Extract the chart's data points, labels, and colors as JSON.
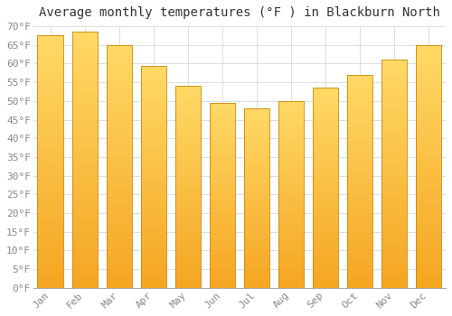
{
  "title": "Average monthly temperatures (°F ) in Blackburn North",
  "months": [
    "Jan",
    "Feb",
    "Mar",
    "Apr",
    "May",
    "Jun",
    "Jul",
    "Aug",
    "Sep",
    "Oct",
    "Nov",
    "Dec"
  ],
  "values": [
    67.5,
    68.5,
    65.0,
    59.5,
    54.0,
    49.5,
    48.0,
    50.0,
    53.5,
    57.0,
    61.0,
    65.0
  ],
  "bar_color_bottom": "#F5A623",
  "bar_color_top": "#FFD966",
  "bar_edge_color": "#C8880A",
  "background_color": "#FFFFFF",
  "plot_bg_color": "#FFFFFF",
  "grid_color": "#DDDDDD",
  "ylim": [
    0,
    70
  ],
  "yticks": [
    0,
    5,
    10,
    15,
    20,
    25,
    30,
    35,
    40,
    45,
    50,
    55,
    60,
    65,
    70
  ],
  "title_fontsize": 10,
  "tick_fontsize": 8,
  "title_color": "#333333",
  "tick_color": "#888888",
  "bar_width": 0.75
}
